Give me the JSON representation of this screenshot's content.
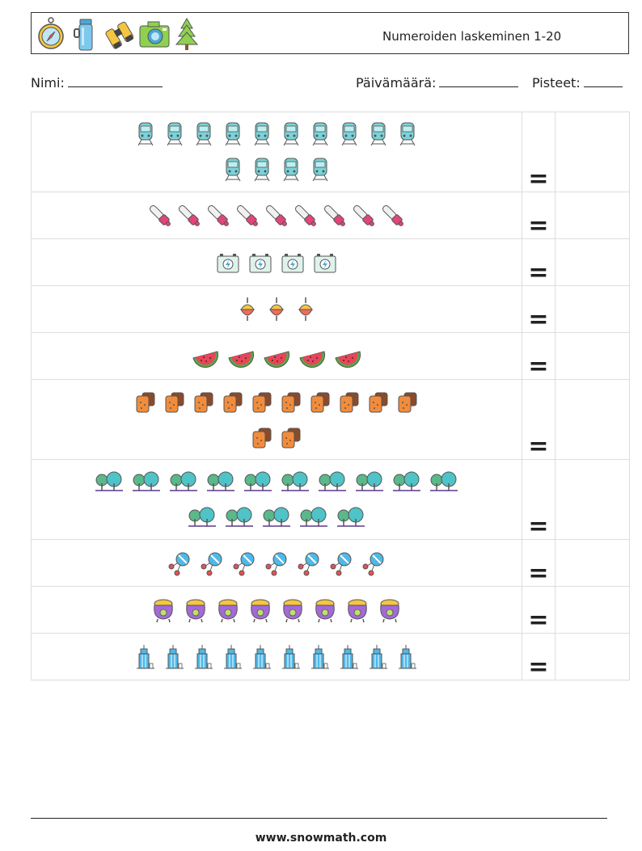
{
  "header": {
    "title": "Numeroiden laskeminen 1-20",
    "icons": [
      "compass-icon",
      "thermos-icon",
      "binoculars-icon",
      "camera-icon",
      "pine-tree-icon"
    ]
  },
  "fields": {
    "name_label": "Nimi:",
    "date_label": "Päivämäärä:",
    "score_label": "Pisteet:"
  },
  "rows": [
    {
      "icon": "train-icon",
      "count": 14,
      "lines": [
        10,
        4
      ],
      "equals": "="
    },
    {
      "icon": "chainsaw-icon",
      "count": 9,
      "lines": [
        9
      ],
      "equals": "="
    },
    {
      "icon": "battery-icon",
      "count": 4,
      "lines": [
        4
      ],
      "equals": "="
    },
    {
      "icon": "fishing-float-icon",
      "count": 3,
      "lines": [
        3
      ],
      "equals": "="
    },
    {
      "icon": "watermelon-icon",
      "count": 5,
      "lines": [
        5
      ],
      "equals": "="
    },
    {
      "icon": "bread-icon",
      "count": 12,
      "lines": [
        10,
        2
      ],
      "equals": "="
    },
    {
      "icon": "forest-icon",
      "count": 15,
      "lines": [
        10,
        5
      ],
      "equals": "="
    },
    {
      "icon": "molecule-icon",
      "count": 7,
      "lines": [
        7
      ],
      "equals": "="
    },
    {
      "icon": "cauldron-icon",
      "count": 8,
      "lines": [
        8
      ],
      "equals": "="
    },
    {
      "icon": "skyscraper-icon",
      "count": 10,
      "lines": [
        10
      ],
      "equals": "="
    }
  ],
  "footer": {
    "url": "www.snowmath.com"
  }
}
